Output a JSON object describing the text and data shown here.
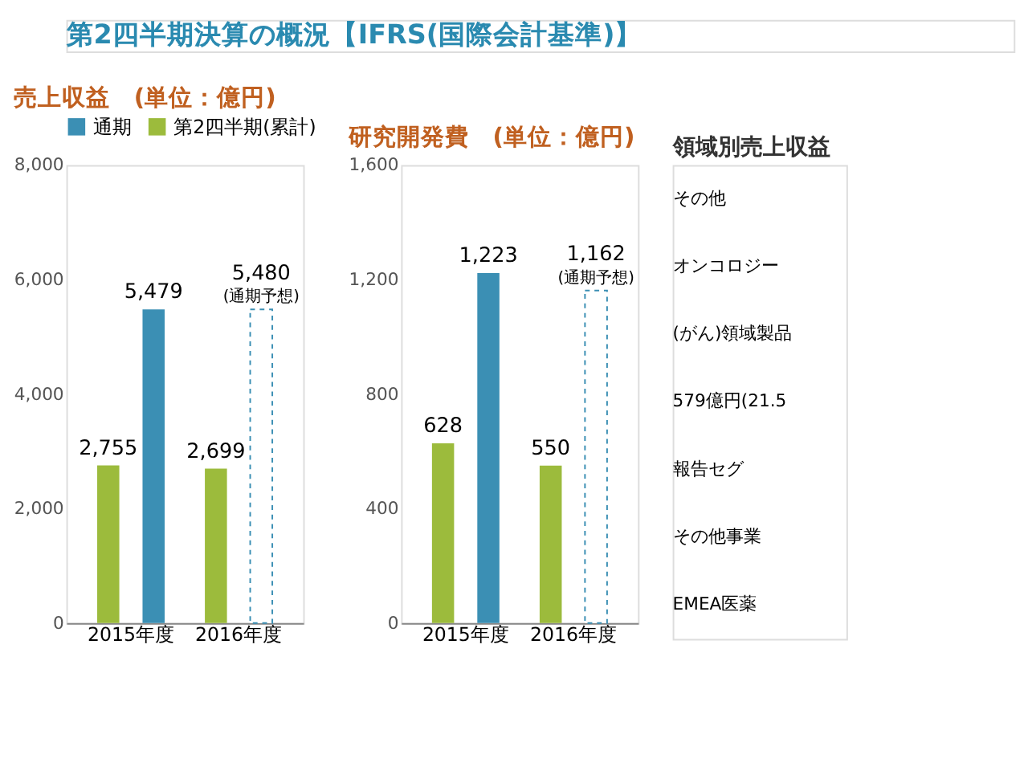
{
  "chart_data": [
    {
      "type": "other",
      "title": "第2四半期決算の概況【IFRS(国際会計基準)】"
    },
    {
      "type": "bar",
      "title": "売上収益　(単位：億円)",
      "categories": [
        "2015年度",
        "2016年度"
      ],
      "series": [
        {
          "name": "通期",
          "color": "#3b8fb4",
          "colors": [
            "#3b8fb4",
            null
          ],
          "values": [
            5479,
            5480
          ],
          "value_labels": [
            "5,479",
            "5,480"
          ]
        },
        {
          "name": "第2四半期(累計)",
          "color": "#9cbb3c",
          "values": [
            2755,
            2699
          ],
          "value_labels": [
            "2,755",
            "2,699"
          ]
        }
      ],
      "annotations": [
        "(通期予想)"
      ],
      "ylim": [
        0,
        8000
      ],
      "yticks": [
        0,
        {
          "value": 2000,
          "label": "2,000"
        },
        {
          "value": 4000,
          "label": "4,000"
        },
        {
          "value": 6000,
          "label": "6,000"
        },
        {
          "value": 8000,
          "label": "8,000"
        }
      ],
      "grid": false,
      "legend": "top"
    },
    {
      "type": "bar",
      "title": "研究開発費　(単位：億円)",
      "categories": [
        "2015年度",
        "2016年度"
      ],
      "series": [
        {
          "name": "通期",
          "color": "#3b8fb4",
          "colors": [
            "#3b8fb4",
            null
          ],
          "values": [
            1223,
            1162
          ],
          "value_labels": [
            "1,223",
            "1,162"
          ]
        },
        {
          "name": "第2四半期(累計)",
          "color": "#9cbb3c",
          "values": [
            628,
            550
          ],
          "value_labels": [
            "628",
            "550"
          ]
        }
      ],
      "annotations": [
        "(通期予想)"
      ],
      "ylim": [
        0,
        1600
      ],
      "yticks": [
        0,
        400,
        800,
        {
          "value": 1200,
          "label": "1,200"
        },
        {
          "value": 1600,
          "label": "1,600"
        }
      ],
      "grid": false,
      "legend": false
    },
    {
      "type": "other",
      "title": "領域別売上収益",
      "annotations": [
        "その他",
        "オンコロジー",
        "(がん)領域製品",
        "579億円(21.5",
        "報告セグ",
        "その他事業",
        "EMEA医薬"
      ]
    }
  ]
}
